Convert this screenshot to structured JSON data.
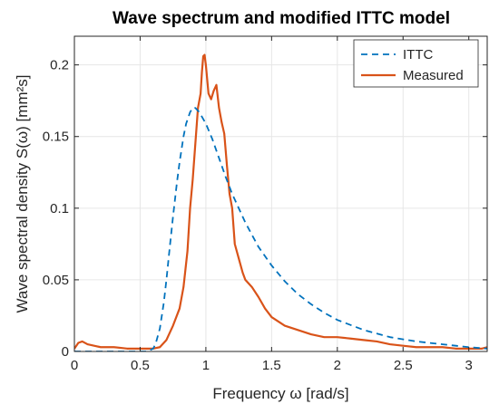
{
  "chart_data": {
    "type": "line",
    "title": "Wave spectrum and modified ITTC model",
    "xlabel": "Frequency ω [rad/s]",
    "ylabel": "Wave spectral density S(ω) [mm²s]",
    "xlim": [
      0,
      3.14
    ],
    "ylim": [
      0,
      0.22
    ],
    "xticks": [
      0,
      0.5,
      1,
      1.5,
      2,
      2.5,
      3
    ],
    "xtick_labels": [
      "0",
      "0.5",
      "1",
      "1.5",
      "2",
      "2.5",
      "3"
    ],
    "yticks": [
      0,
      0.05,
      0.1,
      0.15,
      0.2
    ],
    "ytick_labels": [
      "0",
      "0.05",
      "0.1",
      "0.15",
      "0.2"
    ],
    "grid": true,
    "legend_position": "top-right",
    "series": [
      {
        "name": "ITTC",
        "color": "#0072BD",
        "style": "dashed",
        "x": [
          0.0,
          0.55,
          0.6,
          0.62,
          0.65,
          0.68,
          0.7,
          0.72,
          0.75,
          0.78,
          0.8,
          0.83,
          0.85,
          0.88,
          0.9,
          0.92,
          0.95,
          1.0,
          1.05,
          1.1,
          1.15,
          1.2,
          1.3,
          1.4,
          1.5,
          1.6,
          1.7,
          1.8,
          1.9,
          2.0,
          2.2,
          2.4,
          2.6,
          2.8,
          3.0,
          3.14
        ],
        "y": [
          0.0,
          0.0,
          0.002,
          0.006,
          0.016,
          0.034,
          0.05,
          0.068,
          0.094,
          0.118,
          0.132,
          0.15,
          0.159,
          0.167,
          0.17,
          0.17,
          0.167,
          0.159,
          0.148,
          0.135,
          0.122,
          0.11,
          0.09,
          0.073,
          0.06,
          0.049,
          0.04,
          0.033,
          0.027,
          0.022,
          0.015,
          0.01,
          0.007,
          0.005,
          0.003,
          0.002
        ]
      },
      {
        "name": "Measured",
        "color": "#D95319",
        "style": "solid",
        "x": [
          0.0,
          0.03,
          0.06,
          0.1,
          0.15,
          0.2,
          0.3,
          0.4,
          0.5,
          0.6,
          0.65,
          0.7,
          0.75,
          0.8,
          0.83,
          0.86,
          0.88,
          0.9,
          0.92,
          0.94,
          0.96,
          0.97,
          0.98,
          0.99,
          1.0,
          1.02,
          1.04,
          1.06,
          1.08,
          1.1,
          1.12,
          1.14,
          1.16,
          1.18,
          1.2,
          1.22,
          1.25,
          1.28,
          1.3,
          1.35,
          1.4,
          1.45,
          1.5,
          1.6,
          1.7,
          1.8,
          1.9,
          2.0,
          2.1,
          2.2,
          2.3,
          2.4,
          2.5,
          2.6,
          2.7,
          2.8,
          2.9,
          3.0,
          3.1,
          3.14
        ],
        "y": [
          0.002,
          0.006,
          0.007,
          0.005,
          0.004,
          0.003,
          0.003,
          0.002,
          0.002,
          0.002,
          0.003,
          0.008,
          0.018,
          0.03,
          0.045,
          0.07,
          0.1,
          0.12,
          0.145,
          0.17,
          0.18,
          0.195,
          0.206,
          0.207,
          0.2,
          0.18,
          0.176,
          0.182,
          0.186,
          0.17,
          0.16,
          0.152,
          0.13,
          0.11,
          0.1,
          0.075,
          0.065,
          0.055,
          0.05,
          0.045,
          0.038,
          0.03,
          0.024,
          0.018,
          0.015,
          0.012,
          0.01,
          0.01,
          0.009,
          0.008,
          0.007,
          0.005,
          0.004,
          0.003,
          0.003,
          0.003,
          0.002,
          0.002,
          0.002,
          0.003
        ]
      }
    ]
  }
}
